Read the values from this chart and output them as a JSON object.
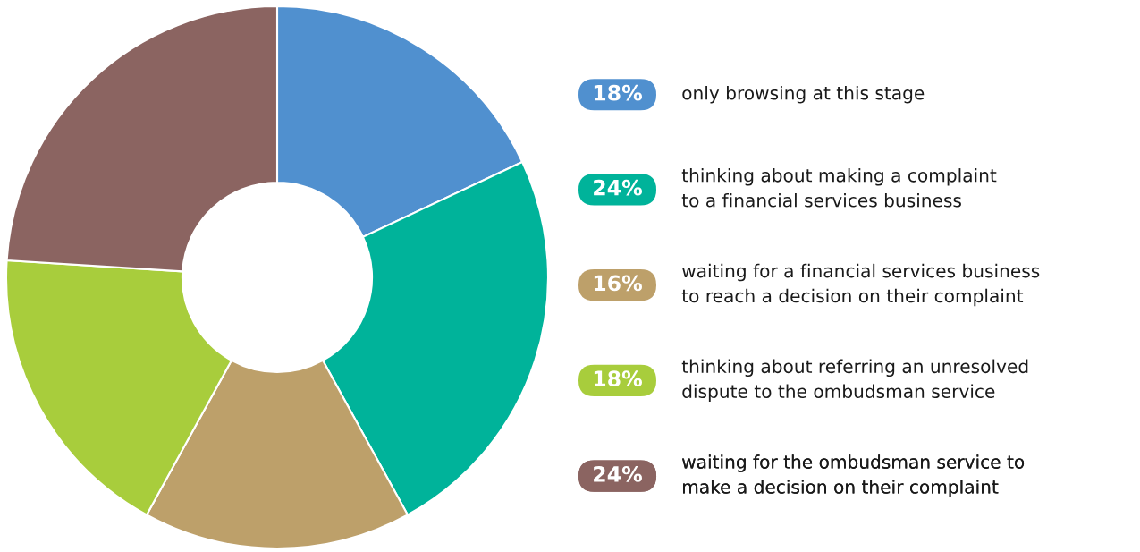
{
  "chart_data": {
    "type": "donut",
    "categories": [
      "only browsing at this stage",
      "thinking about making a complaint\nto a financial services business",
      "waiting for a financial services business\nto reach a decision on their complaint",
      "thinking about referring an unresolved\ndispute to the ombudsman service",
      "waiting for the ombudsman service to\nmake a decision on their complaint"
    ],
    "values": [
      18,
      24,
      16,
      18,
      24
    ],
    "value_labels": [
      "18%",
      "24%",
      "16%",
      "18%",
      "24%"
    ],
    "colors": [
      "#5090cf",
      "#00b39a",
      "#bda06a",
      "#a8cd3c",
      "#8b6461"
    ],
    "legend": "right"
  }
}
